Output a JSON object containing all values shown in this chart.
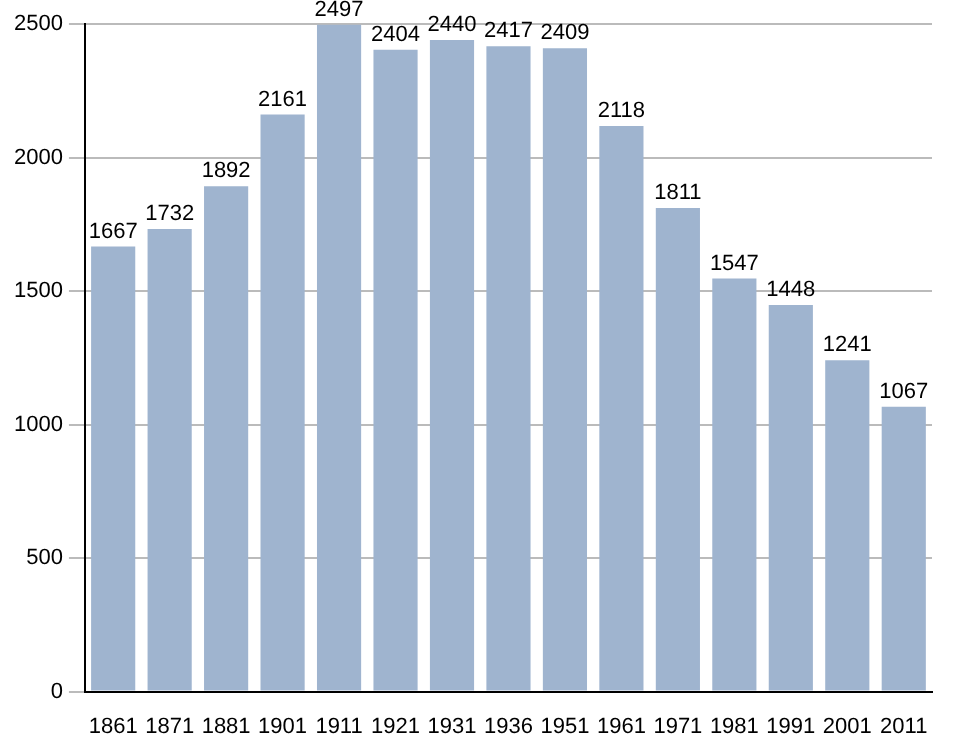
{
  "chart_data": {
    "type": "bar",
    "categories": [
      "1861",
      "1871",
      "1881",
      "1901",
      "1911",
      "1921",
      "1931",
      "1936",
      "1951",
      "1961",
      "1971",
      "1981",
      "1991",
      "2001",
      "2011"
    ],
    "values": [
      1667,
      1732,
      1892,
      2161,
      2497,
      2404,
      2440,
      2417,
      2409,
      2118,
      1811,
      1547,
      1448,
      1241,
      1067
    ],
    "color": "#9fb4cf",
    "ylim": [
      0,
      2500
    ],
    "yticks": [
      0,
      500,
      1000,
      1500,
      2000,
      2500
    ],
    "grid": "y",
    "data_labels": true
  }
}
